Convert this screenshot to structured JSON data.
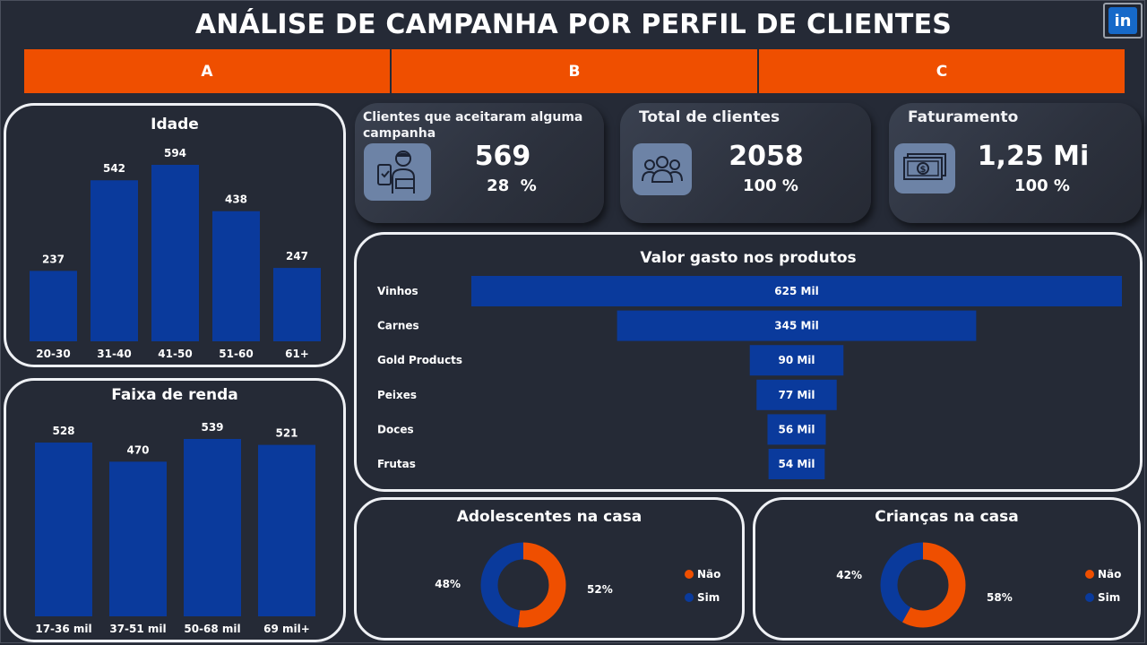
{
  "header": {
    "title": "ANÁLISE DE CAMPANHA POR PERFIL DE CLIENTES",
    "linkedin_label": "in"
  },
  "tabs": [
    {
      "label": "A"
    },
    {
      "label": "B"
    },
    {
      "label": "C"
    }
  ],
  "colors": {
    "bar": "#0a3a9c",
    "orange": "#ef4f00",
    "navy": "#0a3a9c",
    "tab": "#ef4f00"
  },
  "kpis": [
    {
      "title": "Clientes que aceitaram alguma campanha",
      "value": "569",
      "percent": "28",
      "percent_symbol": "%",
      "icon": "delivery-person-icon"
    },
    {
      "title": "Total de clientes",
      "value": "2058",
      "percent": "100",
      "percent_symbol": "%",
      "icon": "people-group-icon"
    },
    {
      "title": "Faturamento",
      "value": "1,25 Mi",
      "percent": "100",
      "percent_symbol": "%",
      "icon": "money-bill-icon"
    }
  ],
  "chart_data": [
    {
      "id": "idade",
      "type": "bar",
      "title": "Idade",
      "categories": [
        "20-30",
        "31-40",
        "41-50",
        "51-60",
        "61+"
      ],
      "values": [
        237,
        542,
        594,
        438,
        247
      ],
      "data_labels": [
        "237",
        "542",
        "594",
        "438",
        "247"
      ],
      "ylim": [
        0,
        594
      ]
    },
    {
      "id": "renda",
      "type": "bar",
      "title": "Faixa de renda",
      "categories": [
        "17-36 mil",
        "37-51 mil",
        "50-68 mil",
        "69 mil+"
      ],
      "values": [
        528,
        470,
        539,
        521
      ],
      "data_labels": [
        "528",
        "470",
        "539",
        "521"
      ],
      "ylim": [
        0,
        539
      ]
    },
    {
      "id": "produtos",
      "type": "bar",
      "orientation": "funnel",
      "title": "Valor gasto nos produtos",
      "categories": [
        "Vinhos",
        "Carnes",
        "Gold Products",
        "Peixes",
        "Doces",
        "Frutas"
      ],
      "values": [
        625000,
        345000,
        90000,
        77000,
        56000,
        54000
      ],
      "data_labels": [
        "625 Mil",
        "345 Mil",
        "90 Mil",
        "77 Mil",
        "56 Mil",
        "54 Mil"
      ]
    },
    {
      "id": "adolescentes",
      "type": "pie",
      "title": "Adolescentes na casa",
      "legend": [
        "Não",
        "Sim"
      ],
      "values": [
        52,
        48
      ],
      "data_labels": [
        "52%",
        "48%"
      ]
    },
    {
      "id": "criancas",
      "type": "pie",
      "title": "Crianças na casa",
      "legend": [
        "Não",
        "Sim"
      ],
      "values": [
        58,
        42
      ],
      "data_labels": [
        "58%",
        "42%"
      ]
    }
  ]
}
